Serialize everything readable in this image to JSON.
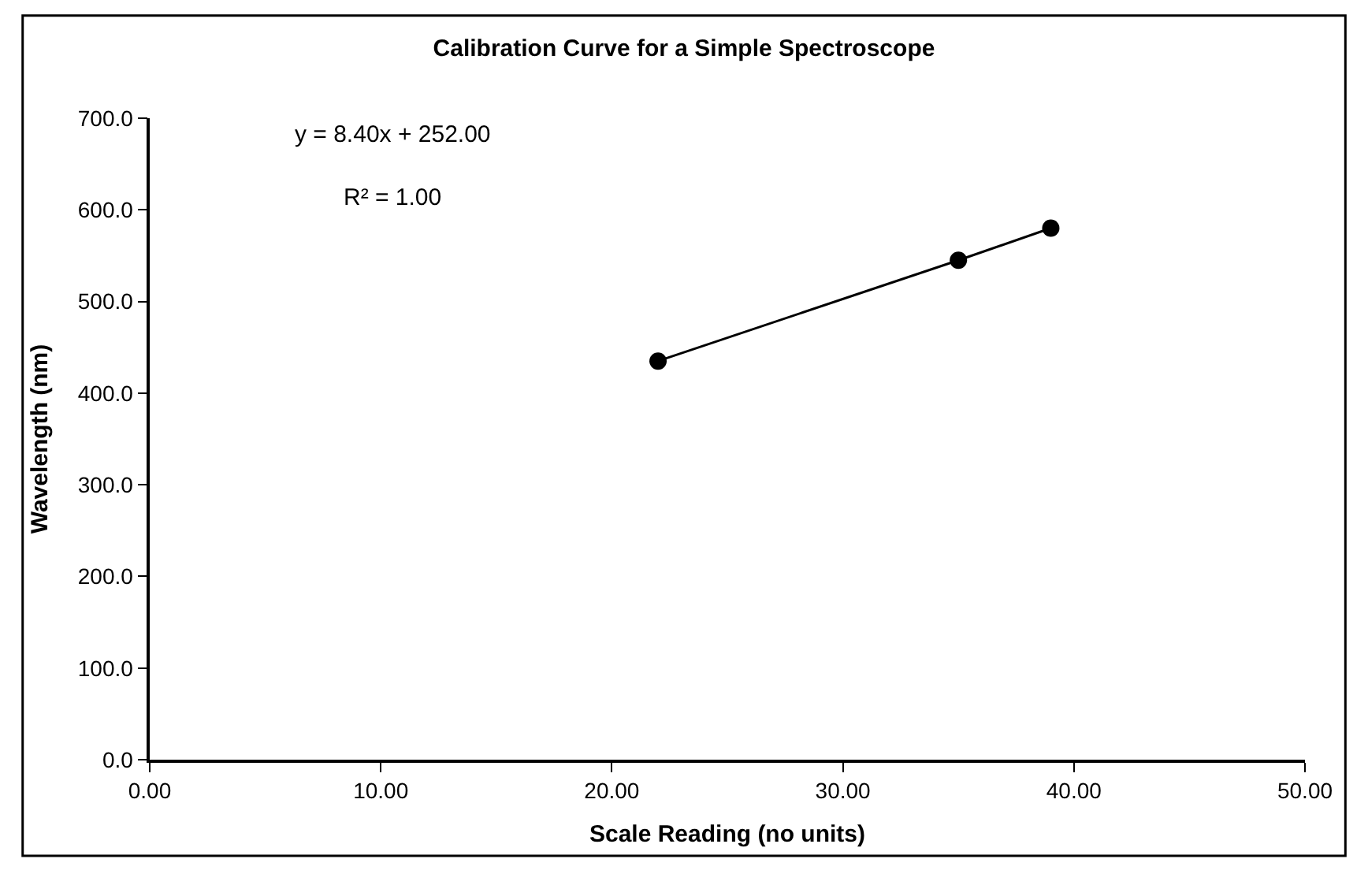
{
  "chart_data": {
    "type": "line",
    "title": "Calibration Curve for a Simple Spectroscope",
    "xlabel": "Scale Reading (no units)",
    "ylabel": "Wavelength (nm)",
    "x": [
      22,
      35,
      39
    ],
    "series": [
      {
        "color": "#000000",
        "values": [
          435,
          545,
          580
        ]
      }
    ],
    "annotations": [
      "y = 8.40x + 252.00",
      "R² = 1.00"
    ],
    "xlim": [
      0,
      50
    ],
    "xticks": [
      {
        "value": 0,
        "label": "0.00"
      },
      {
        "value": 10,
        "label": "10.00"
      },
      {
        "value": 20,
        "label": "20.00"
      },
      {
        "value": 30,
        "label": "30.00"
      },
      {
        "value": 40,
        "label": "40.00"
      },
      {
        "value": 50,
        "label": "50.00"
      }
    ],
    "ylim": [
      0,
      700
    ],
    "yticks": [
      {
        "value": 0,
        "label": "0.0"
      },
      {
        "value": 100,
        "label": "100.0"
      },
      {
        "value": 200,
        "label": "200.0"
      },
      {
        "value": 300,
        "label": "300.0"
      },
      {
        "value": 400,
        "label": "400.0"
      },
      {
        "value": 500,
        "label": "500.0"
      },
      {
        "value": 600,
        "label": "600.0"
      },
      {
        "value": 700,
        "label": "700.0"
      }
    ],
    "marker": "circle",
    "line_style": "solid"
  }
}
